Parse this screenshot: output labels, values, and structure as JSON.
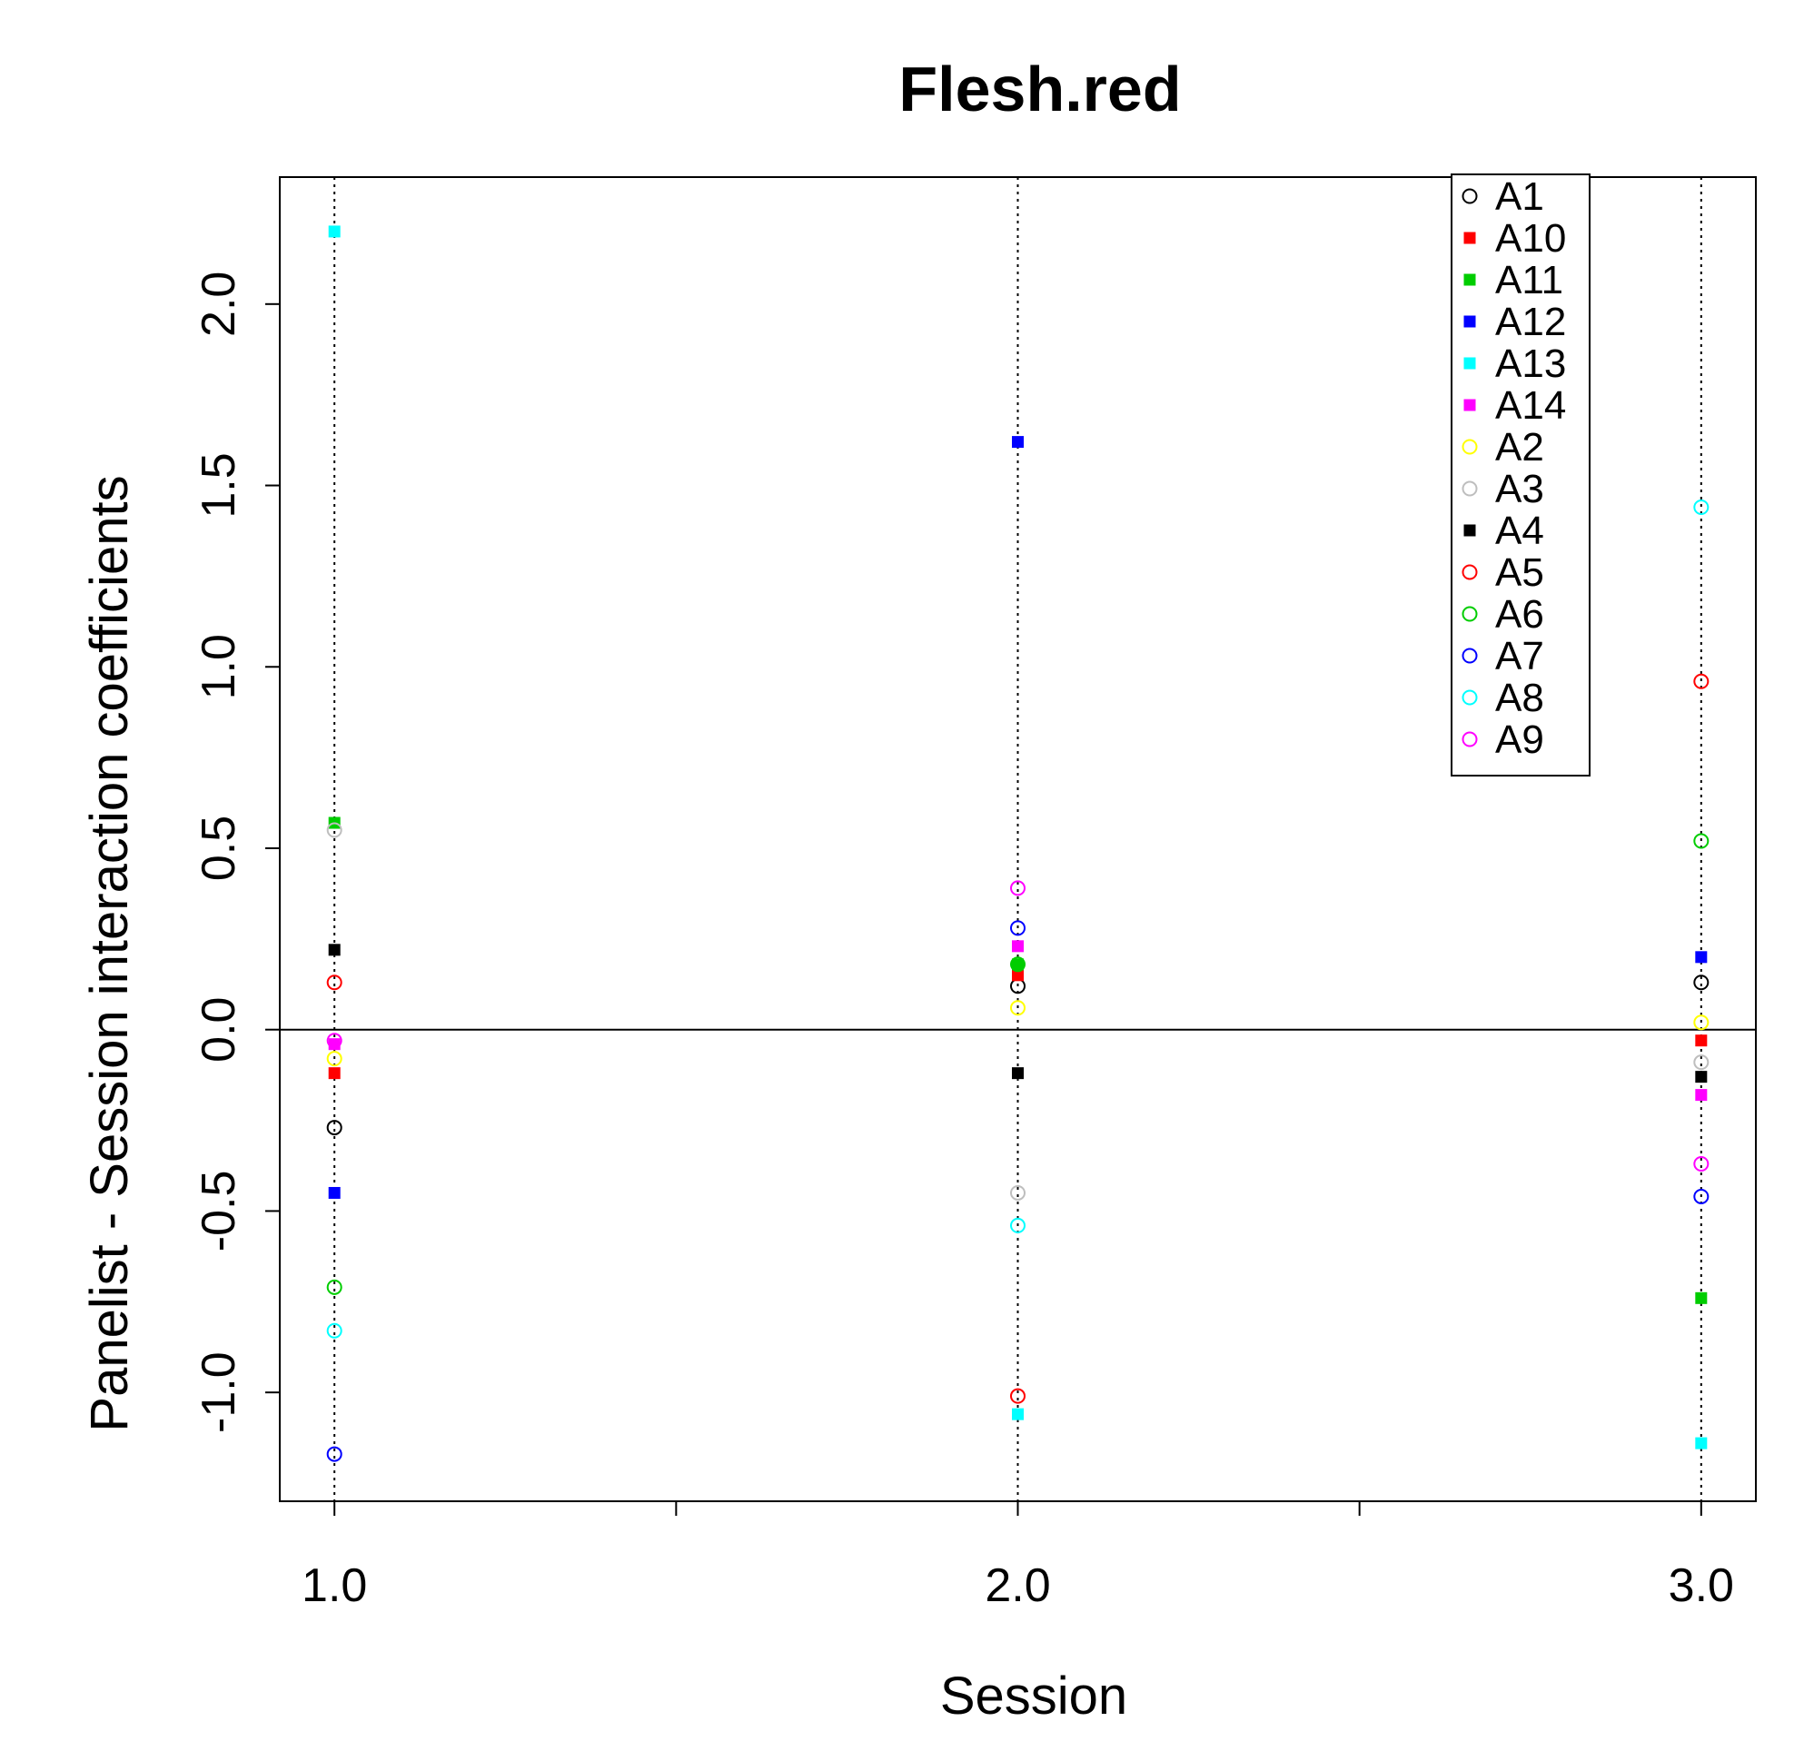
{
  "chart_data": {
    "type": "scatter",
    "title": "Flesh.red",
    "xlabel": "Session",
    "ylabel": "Panelist - Session interaction coefficients",
    "xlim": [
      0.92,
      3.08
    ],
    "ylim": [
      -1.3,
      2.35
    ],
    "x_ticks": [
      1.0,
      1.5,
      2.0,
      2.5,
      3.0
    ],
    "x_tick_labels": [
      "1.0",
      "",
      "2.0",
      "",
      "3.0"
    ],
    "y_ticks": [
      -1.0,
      -0.5,
      0.0,
      0.5,
      1.0,
      1.5,
      2.0
    ],
    "y_tick_labels": [
      "-1.0",
      "-0.5",
      "0.0",
      "0.5",
      "1.0",
      "1.5",
      "2.0"
    ],
    "reference_line_y": 0,
    "vertical_guides_x": [
      1,
      2,
      3
    ],
    "legend_position": "top-right",
    "x": [
      1,
      2,
      3
    ],
    "series": [
      {
        "name": "A1",
        "color": "#000000",
        "marker": "open-circle",
        "values": [
          -0.27,
          0.12,
          0.13
        ]
      },
      {
        "name": "A10",
        "color": "#ff0000",
        "marker": "filled-square",
        "values": [
          -0.12,
          0.15,
          -0.03
        ]
      },
      {
        "name": "A11",
        "color": "#00cd00",
        "marker": "filled-square",
        "values": [
          0.57,
          0.18,
          -0.74
        ]
      },
      {
        "name": "A12",
        "color": "#0000ff",
        "marker": "filled-square",
        "values": [
          -0.45,
          1.62,
          0.2
        ]
      },
      {
        "name": "A13",
        "color": "#00ffff",
        "marker": "filled-square",
        "values": [
          2.2,
          -1.06,
          -1.14
        ]
      },
      {
        "name": "A14",
        "color": "#ff00ff",
        "marker": "filled-square",
        "values": [
          -0.04,
          0.23,
          -0.18
        ]
      },
      {
        "name": "A2",
        "color": "#ffff00",
        "marker": "open-circle",
        "values": [
          -0.08,
          0.06,
          0.02
        ]
      },
      {
        "name": "A3",
        "color": "#bebebe",
        "marker": "open-circle",
        "values": [
          0.55,
          -0.45,
          -0.09
        ]
      },
      {
        "name": "A4",
        "color": "#000000",
        "marker": "filled-square",
        "values": [
          0.22,
          -0.12,
          -0.13
        ]
      },
      {
        "name": "A5",
        "color": "#ff0000",
        "marker": "open-circle",
        "values": [
          0.13,
          -1.01,
          0.96
        ]
      },
      {
        "name": "A6",
        "color": "#00cd00",
        "marker": "open-circle",
        "values": [
          -0.71,
          0.18,
          0.52
        ]
      },
      {
        "name": "A7",
        "color": "#0000ff",
        "marker": "open-circle",
        "values": [
          -1.17,
          0.28,
          -0.46
        ]
      },
      {
        "name": "A8",
        "color": "#00ffff",
        "marker": "open-circle",
        "values": [
          -0.83,
          -0.54,
          1.44
        ]
      },
      {
        "name": "A9",
        "color": "#ff00ff",
        "marker": "open-circle",
        "values": [
          -0.03,
          0.39,
          -0.37
        ]
      }
    ]
  }
}
